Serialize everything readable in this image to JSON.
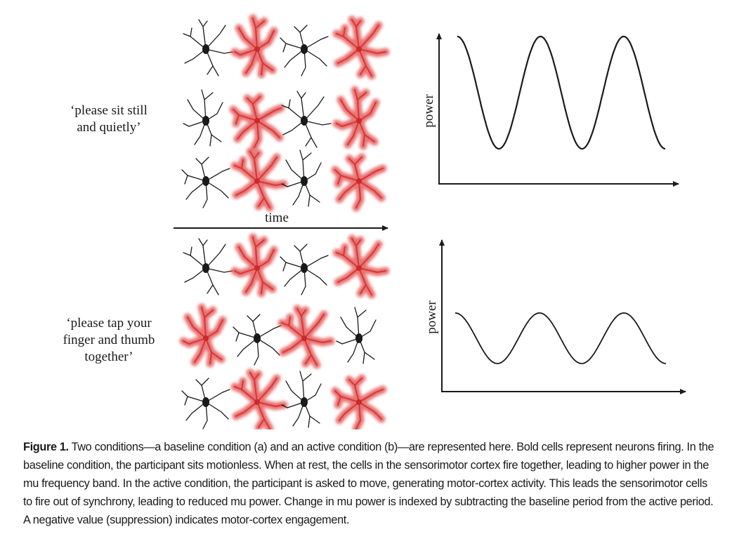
{
  "panel_a": {
    "instruction_line1": "‘please sit still",
    "instruction_line2": "and quietly’",
    "chart_ylabel": "power"
  },
  "time_axis_label": "time",
  "panel_b": {
    "instruction_line1": "‘please tap your",
    "instruction_line2": "finger and thumb",
    "instruction_line3": "together’",
    "chart_ylabel": "power"
  },
  "colors": {
    "firing_neuron": "#e04545",
    "resting_neuron": "#1a1a1a",
    "ink": "#1a1a1a"
  },
  "neuron_grid": {
    "baseline_rows": [
      [
        "resting",
        "firing",
        "resting",
        "firing"
      ],
      [
        "resting",
        "firing",
        "resting",
        "firing"
      ],
      [
        "resting",
        "firing",
        "resting",
        "firing"
      ]
    ],
    "active_rows": [
      [
        "resting",
        "firing",
        "resting",
        "firing"
      ],
      [
        "firing",
        "resting",
        "firing",
        "resting"
      ],
      [
        "resting",
        "firing",
        "resting",
        "firing"
      ]
    ]
  },
  "chart_data": [
    {
      "type": "line",
      "xlabel": "",
      "ylabel": "power",
      "series": [
        {
          "shape": "sine",
          "cycles": 2.5,
          "amplitude": 1.0
        }
      ]
    },
    {
      "type": "line",
      "xlabel": "",
      "ylabel": "power",
      "series": [
        {
          "shape": "sine",
          "cycles": 2.5,
          "amplitude": 0.45
        }
      ]
    }
  ],
  "caption": {
    "label": "Figure 1.",
    "text": " Two conditions—a baseline condition (a) and an active condition (b)—are represented here. Bold cells represent neurons firing. In the baseline condition, the participant sits motionless. When at rest, the cells in the sensorimotor cortex fire together, leading to higher power in the mu frequency band. In the active condition, the participant is asked to move, generating motor-cortex activity. This leads the sensorimotor cells to fire out of synchrony, leading to reduced mu power. Change in mu power is indexed by subtracting the baseline period from the active period. A negative value (suppression) indicates motor-cortex engagement."
  }
}
